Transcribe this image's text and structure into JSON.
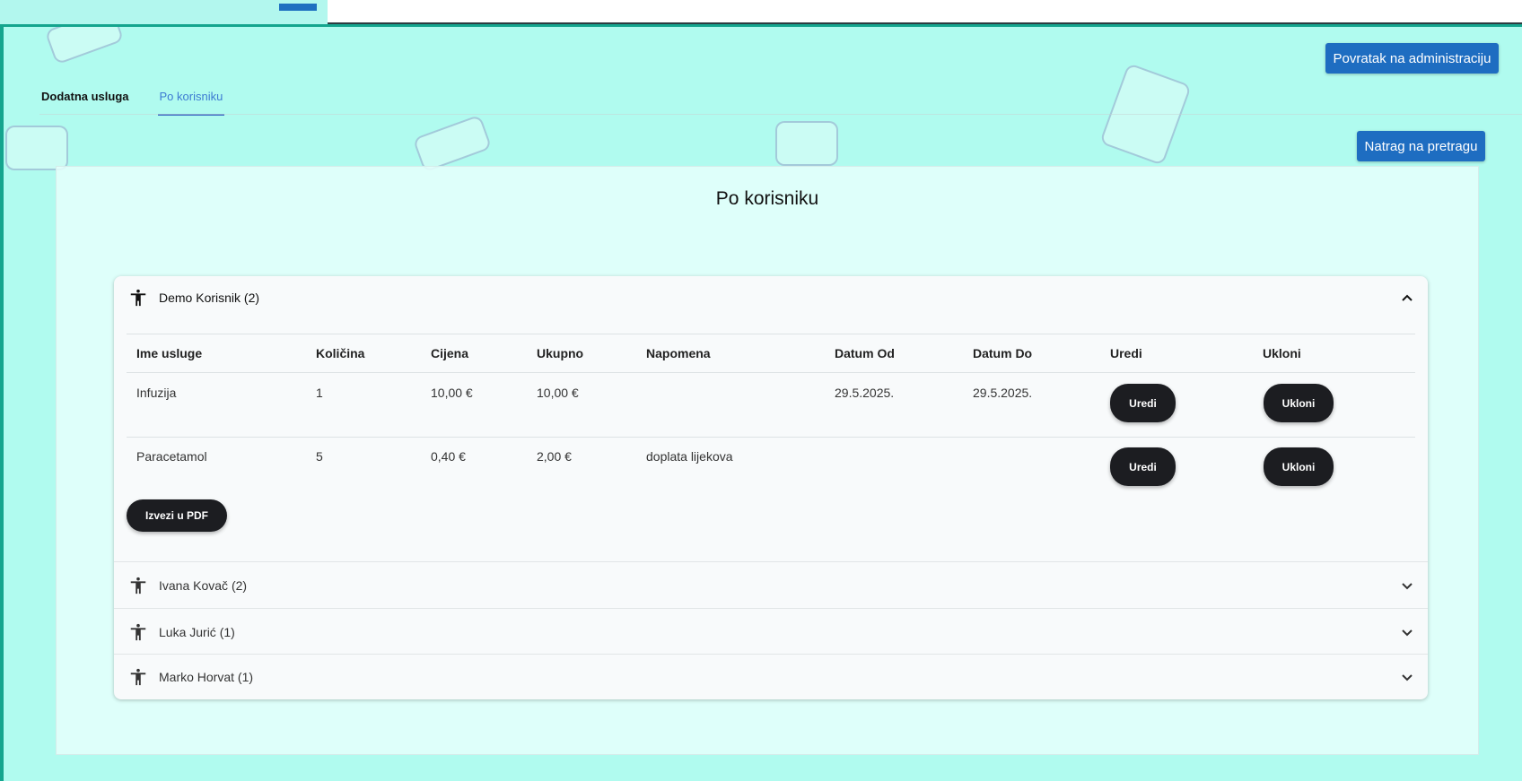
{
  "header": {
    "back_admin": "Povratak na administraciju",
    "back_search": "Natrag na pretragu"
  },
  "tabs": [
    {
      "label": "Dodatna usluga",
      "active": false
    },
    {
      "label": "Po korisniku",
      "active": true
    }
  ],
  "page_title": "Po korisniku",
  "colors": {
    "background": "#b0fbef",
    "primary": "#1e6dc1",
    "dark_button": "#1c1d21",
    "tab_active": "#3d7bd2"
  },
  "table": {
    "columns": [
      "Ime usluge",
      "Količina",
      "Cijena",
      "Ukupno",
      "Napomena",
      "Datum Od",
      "Datum Do",
      "Uredi",
      "Ukloni"
    ],
    "edit_label": "Uredi",
    "remove_label": "Ukloni",
    "export_label": "Izvezi u PDF"
  },
  "users": [
    {
      "name": "Demo Korisnik (2)",
      "expanded": true,
      "icon": "accessibility-icon",
      "rows": [
        {
          "service": "Infuzija",
          "qty": "1",
          "price": "10,00 €",
          "total": "10,00 €",
          "note": "",
          "from": "29.5.2025.",
          "to": "29.5.2025."
        },
        {
          "service": "Paracetamol",
          "qty": "5",
          "price": "0,40 €",
          "total": "2,00 €",
          "note": "doplata lijekova",
          "from": "",
          "to": ""
        }
      ]
    },
    {
      "name": "Ivana Kovač (2)",
      "expanded": false,
      "icon": "accessibility-icon"
    },
    {
      "name": "Luka Jurić (1)",
      "expanded": false,
      "icon": "accessibility-icon"
    },
    {
      "name": "Marko Horvat (1)",
      "expanded": false,
      "icon": "accessibility-icon"
    }
  ]
}
